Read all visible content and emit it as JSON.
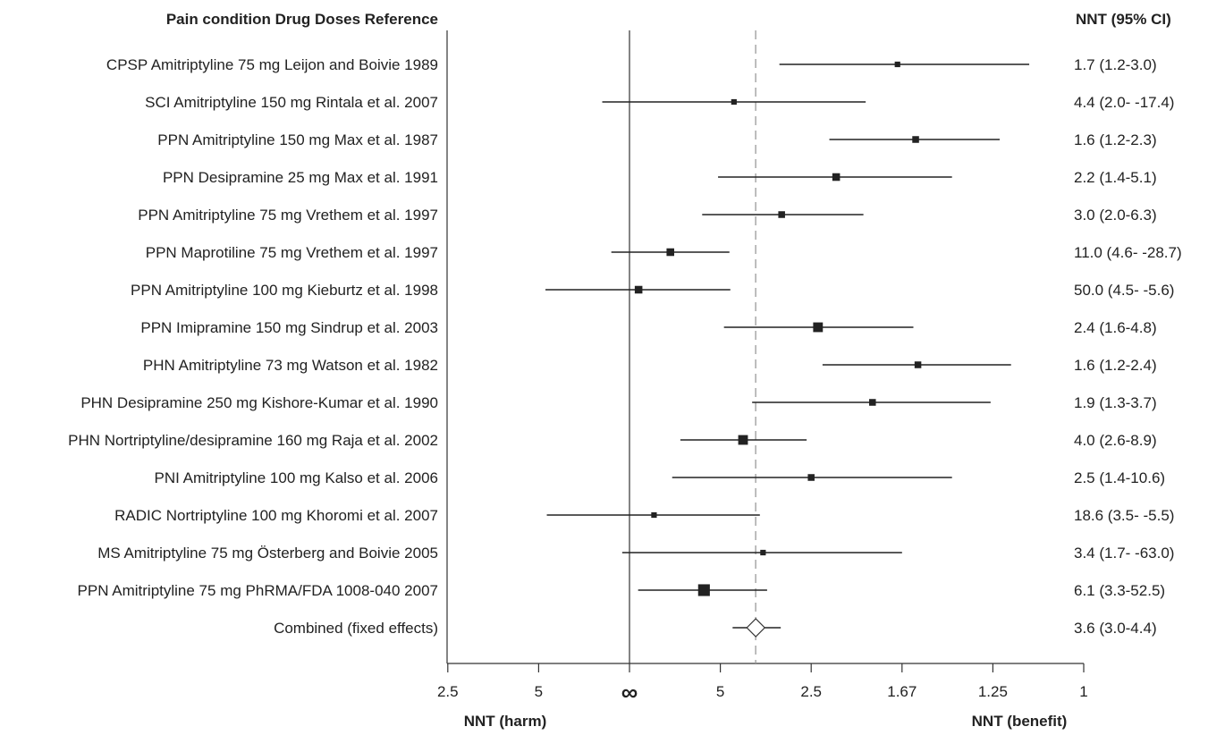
{
  "chart_data": {
    "type": "forest",
    "headers": {
      "left": "Pain condition Drug Doses Reference",
      "right": "NNT (95% CI)"
    },
    "x_axis": {
      "scale": "reciprocal NNT (ARR); left half harm, right half benefit, center infinity",
      "ticks": [
        {
          "label": "2.5",
          "arr": -0.4
        },
        {
          "label": "5",
          "arr": -0.2
        },
        {
          "label": "∞",
          "arr": 0
        },
        {
          "label": "5",
          "arr": 0.2
        },
        {
          "label": "2.5",
          "arr": 0.4
        },
        {
          "label": "1.67",
          "arr": 0.6
        },
        {
          "label": "1.25",
          "arr": 0.8
        },
        {
          "label": "1",
          "arr": 1.0
        }
      ],
      "range": [
        -0.4,
        1.0
      ],
      "reference_line_nnt": 3.6,
      "left_title": "NNT (harm)",
      "right_title": "NNT (benefit)"
    },
    "studies": [
      {
        "label": "CPSP Amitriptyline 75 mg Leijon and Boivie 1989",
        "nnt_text": "1.7 (1.2-3.0)",
        "point": 0.59,
        "lo": 0.33,
        "hi": 0.88,
        "weight": 1
      },
      {
        "label": "SCI Amitriptyline 150 mg Rintala et al. 2007",
        "nnt_text": "4.4 (2.0- -17.4)",
        "point": 0.23,
        "lo": -0.06,
        "hi": 0.52,
        "weight": 1
      },
      {
        "label": "PPN Amitriptyline 150 mg Max et al. 1987",
        "nnt_text": "1.6 (1.2-2.3)",
        "point": 0.63,
        "lo": 0.44,
        "hi": 0.815,
        "weight": 2
      },
      {
        "label": "PPN Desipramine 25 mg Max et al. 1991",
        "nnt_text": "2.2 (1.4-5.1)",
        "point": 0.455,
        "lo": 0.195,
        "hi": 0.71,
        "weight": 3
      },
      {
        "label": "PPN Amitriptyline 75 mg Vrethem et al. 1997",
        "nnt_text": "3.0 (2.0-6.3)",
        "point": 0.335,
        "lo": 0.16,
        "hi": 0.515,
        "weight": 2
      },
      {
        "label": "PPN Maprotiline 75 mg Vrethem et al. 1997",
        "nnt_text": "11.0 (4.6- -28.7)",
        "point": 0.09,
        "lo": -0.04,
        "hi": 0.22,
        "weight": 3
      },
      {
        "label": "PPN Amitriptyline 100 mg Kieburtz et al. 1998",
        "nnt_text": "50.0 (4.5- -5.6)",
        "point": 0.02,
        "lo": -0.185,
        "hi": 0.222,
        "weight": 3
      },
      {
        "label": "PPN Imipramine 150 mg Sindrup et al. 2003",
        "nnt_text": "2.4 (1.6-4.8)",
        "point": 0.415,
        "lo": 0.208,
        "hi": 0.625,
        "weight": 6
      },
      {
        "label": "PHN Amitriptyline 73 mg Watson et al. 1982",
        "nnt_text": "1.6 (1.2-2.4)",
        "point": 0.635,
        "lo": 0.425,
        "hi": 0.84,
        "weight": 2
      },
      {
        "label": "PHN Desipramine 250 mg Kishore-Kumar et al. 1990",
        "nnt_text": "1.9 (1.3-3.7)",
        "point": 0.535,
        "lo": 0.27,
        "hi": 0.795,
        "weight": 2
      },
      {
        "label": "PHN Nortriptyline/desipramine 160 mg Raja et al. 2002",
        "nnt_text": "4.0 (2.6-8.9)",
        "point": 0.25,
        "lo": 0.112,
        "hi": 0.39,
        "weight": 6
      },
      {
        "label": "PNI Amitriptyline 100 mg Kalso et al. 2006",
        "nnt_text": "2.5 (1.4-10.6)",
        "point": 0.4,
        "lo": 0.094,
        "hi": 0.71,
        "weight": 2
      },
      {
        "label": "RADIC Nortriptyline 100 mg Khoromi et al. 2007",
        "nnt_text": "18.6 (3.5- -5.5)",
        "point": 0.054,
        "lo": -0.182,
        "hi": 0.287,
        "weight": 1
      },
      {
        "label": "MS Amitriptyline 75 mg Österberg and Boivie 2005",
        "nnt_text": "3.4 (1.7- -63.0)",
        "point": 0.294,
        "lo": -0.016,
        "hi": 0.6,
        "weight": 1
      },
      {
        "label": "PPN Amitriptyline 75 mg PhRMA/FDA 1008-040 2007",
        "nnt_text": "6.1 (3.3-52.5)",
        "point": 0.164,
        "lo": 0.019,
        "hi": 0.303,
        "weight": 10
      }
    ],
    "combined": {
      "label": "Combined (fixed effects)",
      "nnt_text": "3.6 (3.0-4.4)",
      "point": 0.278,
      "lo": 0.227,
      "hi": 0.333
    }
  }
}
